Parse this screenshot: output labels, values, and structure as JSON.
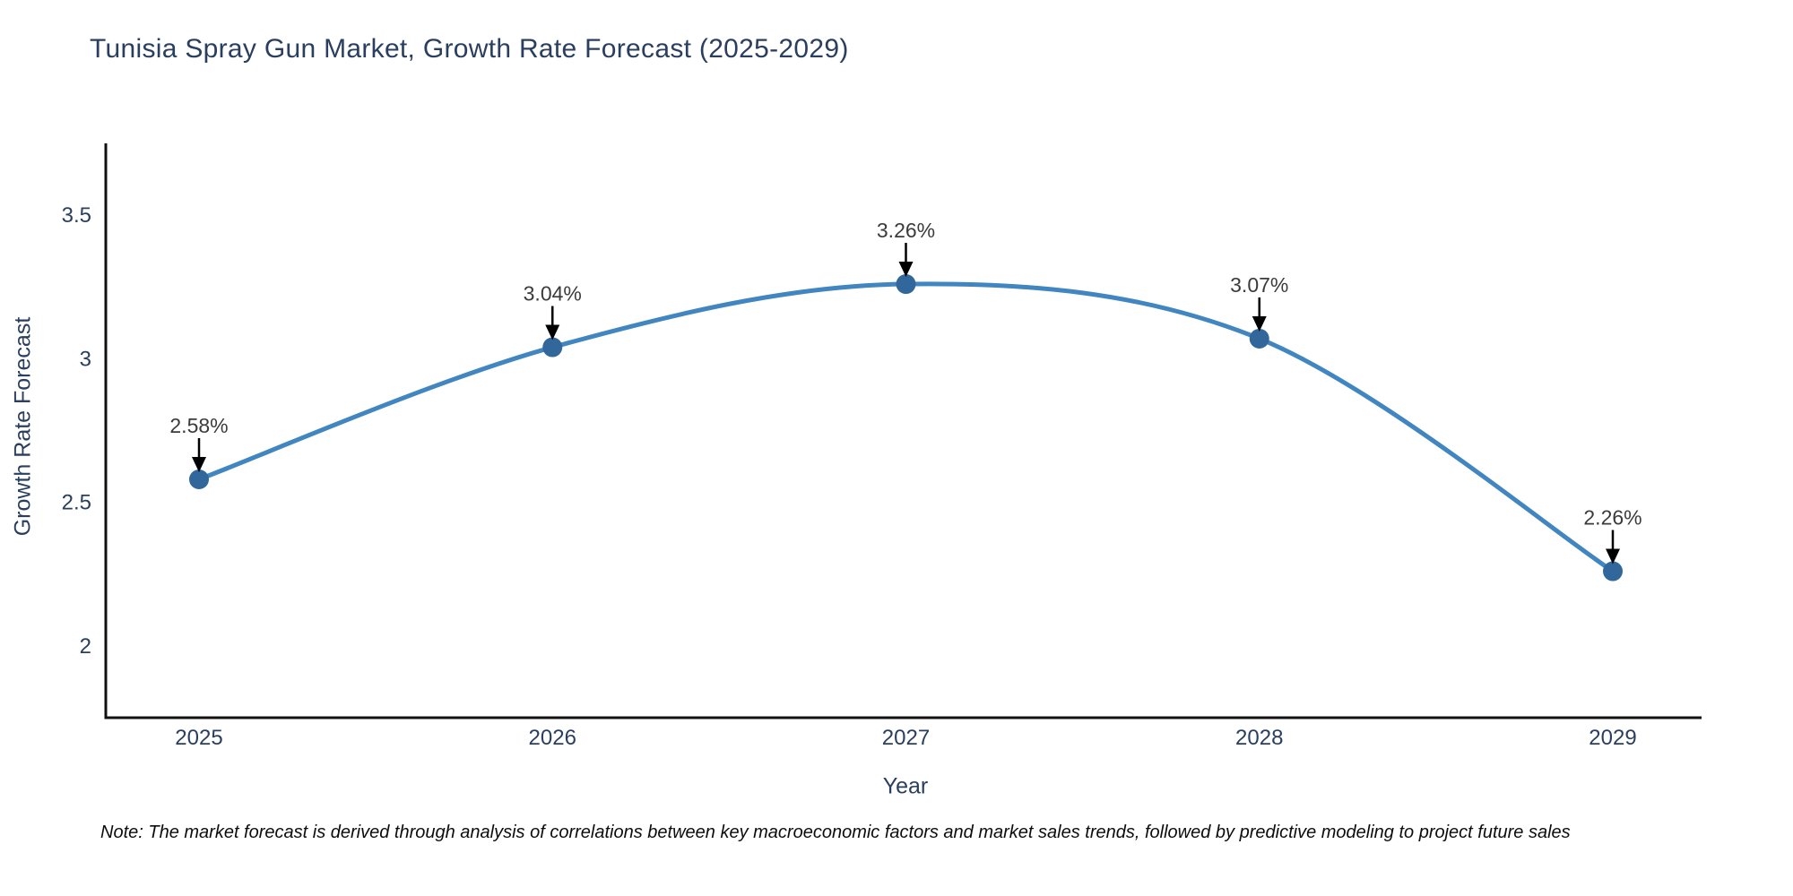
{
  "title": "Tunisia Spray Gun Market, Growth Rate Forecast (2025-2029)",
  "note": "Note: The market forecast is derived through analysis of correlations between key macroeconomic factors and market sales trends, followed by predictive modeling to project future sales",
  "chart_data": {
    "type": "line",
    "title": "Tunisia Spray Gun Market, Growth Rate Forecast (2025-2029)",
    "categories": [
      "2025",
      "2026",
      "2027",
      "2028",
      "2029"
    ],
    "values": [
      2.58,
      3.04,
      3.26,
      3.07,
      2.26
    ],
    "point_labels": [
      "2.58%",
      "3.04%",
      "3.26%",
      "3.07%",
      "2.26%"
    ],
    "xlabel": "Year",
    "ylabel": "Growth Rate Forecast",
    "yticks": [
      2,
      2.5,
      3,
      3.5
    ],
    "ytick_labels": [
      "2",
      "2.5",
      "3",
      "3.5"
    ],
    "ylim": [
      1.75,
      3.75
    ],
    "grid": false,
    "legend": "none",
    "colors": {
      "line": "#4186c0",
      "marker": "#31679b",
      "axis_line": "#111111",
      "tick_label": "#2a3f5f",
      "annotation_text": "#3b3b3b",
      "annotation_arrow": "#000000"
    }
  }
}
